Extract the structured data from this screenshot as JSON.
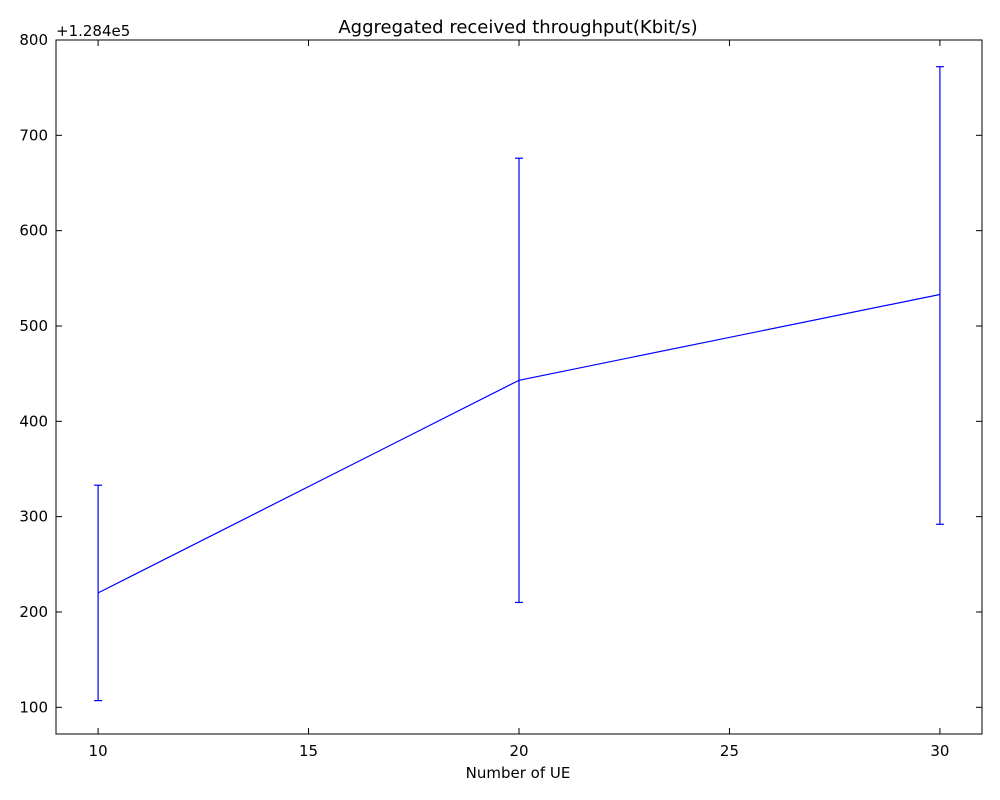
{
  "chart_data": {
    "type": "line",
    "title": "Aggregated received throughput(Kbit/s)",
    "xlabel": "Number of UE",
    "ylabel": "",
    "y_offset_label": "+1.284e5",
    "y_offset": 128400,
    "xlim": [
      9,
      31
    ],
    "ylim": [
      72,
      800
    ],
    "x_ticks": [
      10,
      15,
      20,
      25,
      30
    ],
    "y_ticks": [
      100,
      200,
      300,
      400,
      500,
      600,
      700,
      800
    ],
    "grid": false,
    "series": [
      {
        "x": [
          10,
          20,
          30
        ],
        "y": [
          220,
          443,
          533
        ],
        "yerr_low": [
          107,
          210,
          292
        ],
        "yerr_high": [
          333,
          676,
          772
        ]
      }
    ],
    "colors": {
      "series": "#0000ff",
      "axes": "#000000"
    }
  }
}
